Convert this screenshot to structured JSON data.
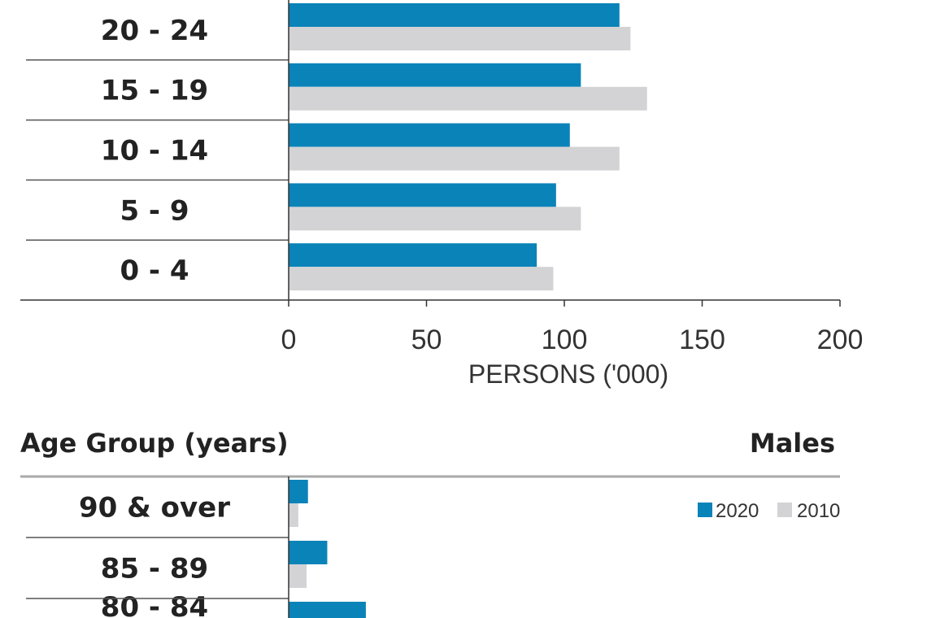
{
  "chart_data": [
    {
      "type": "bar",
      "orientation": "horizontal",
      "categories": [
        "20 - 24",
        "15 - 19",
        "10 - 14",
        "5 - 9",
        "0 - 4"
      ],
      "series": [
        {
          "name": "2020",
          "color": "#0a83b8",
          "values": [
            120,
            106,
            102,
            97,
            90
          ]
        },
        {
          "name": "2010",
          "color": "#d3d3d5",
          "values": [
            124,
            130,
            120,
            106,
            96
          ]
        }
      ],
      "xlabel": "PERSONS ('000)",
      "xlim": [
        0,
        200
      ],
      "xticks": [
        "0",
        "50",
        "100",
        "150",
        "200"
      ]
    },
    {
      "type": "bar",
      "orientation": "horizontal",
      "title": "Males",
      "ylabel": "Age Group (years)",
      "categories": [
        "90 & over",
        "85 - 89",
        "80 - 84"
      ],
      "series": [
        {
          "name": "2020",
          "color": "#0a83b8",
          "values": [
            7,
            14,
            28
          ]
        },
        {
          "name": "2010",
          "color": "#d3d3d5",
          "values": [
            3.5,
            6.5,
            null
          ]
        }
      ],
      "xlim": [
        0,
        200
      ],
      "legend": "top-right"
    }
  ]
}
